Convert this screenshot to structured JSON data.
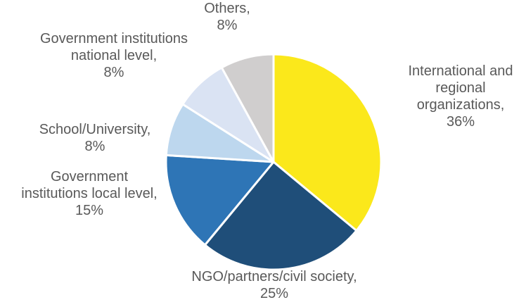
{
  "chart_data": {
    "type": "pie",
    "title": "",
    "start_angle_deg": 0,
    "direction": "clockwise",
    "slices": [
      {
        "label": [
          "International and",
          "regional",
          "organizations,",
          "36%"
        ],
        "category": "International and regional organizations",
        "value": 36,
        "color": "#FBE81B"
      },
      {
        "label": [
          "NGO/partners/civil society,",
          "25%"
        ],
        "category": "NGO/partners/civil society",
        "value": 25,
        "color": "#1F4E79"
      },
      {
        "label": [
          "Government",
          "institutions local level,",
          "15%"
        ],
        "category": "Government institutions local level",
        "value": 15,
        "color": "#2E75B6"
      },
      {
        "label": [
          "School/University,",
          "8%"
        ],
        "category": "School/University",
        "value": 8,
        "color": "#BDD7EE"
      },
      {
        "label": [
          "Government institutions",
          "national level,",
          "8%"
        ],
        "category": "Government institutions national level",
        "value": 8,
        "color": "#DAE3F3"
      },
      {
        "label": [
          "Others,",
          "8%"
        ],
        "category": "Others",
        "value": 8,
        "color": "#D0CECE"
      }
    ]
  }
}
